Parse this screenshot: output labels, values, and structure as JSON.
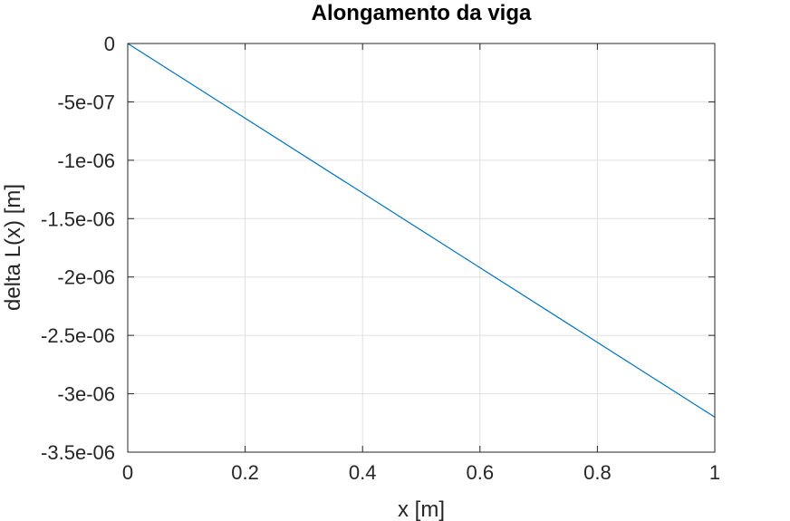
{
  "chart_data": {
    "type": "line",
    "title": "Alongamento da viga",
    "xlabel": "x [m]",
    "ylabel": "delta L(x) [m]",
    "xlim": [
      0,
      1
    ],
    "ylim": [
      -3.5e-06,
      0
    ],
    "grid": true,
    "legend": "none",
    "x_ticks": [
      {
        "value": 0,
        "label": "0"
      },
      {
        "value": 0.2,
        "label": "0.2"
      },
      {
        "value": 0.4,
        "label": "0.4"
      },
      {
        "value": 0.6,
        "label": "0.6"
      },
      {
        "value": 0.8,
        "label": "0.8"
      },
      {
        "value": 1,
        "label": "1"
      }
    ],
    "y_ticks": [
      {
        "value": 0,
        "label": "0"
      },
      {
        "value": -5e-07,
        "label": "-5e-07"
      },
      {
        "value": -1e-06,
        "label": "-1e-06"
      },
      {
        "value": -1.5e-06,
        "label": "-1.5e-06"
      },
      {
        "value": -2e-06,
        "label": "-2e-06"
      },
      {
        "value": -2.5e-06,
        "label": "-2.5e-06"
      },
      {
        "value": -3e-06,
        "label": "-3e-06"
      },
      {
        "value": -3.5e-06,
        "label": "-3.5e-06"
      }
    ],
    "series": [
      {
        "color": "#0072BD",
        "x": [
          0,
          1
        ],
        "y": [
          0,
          -3.2e-06
        ]
      }
    ]
  }
}
